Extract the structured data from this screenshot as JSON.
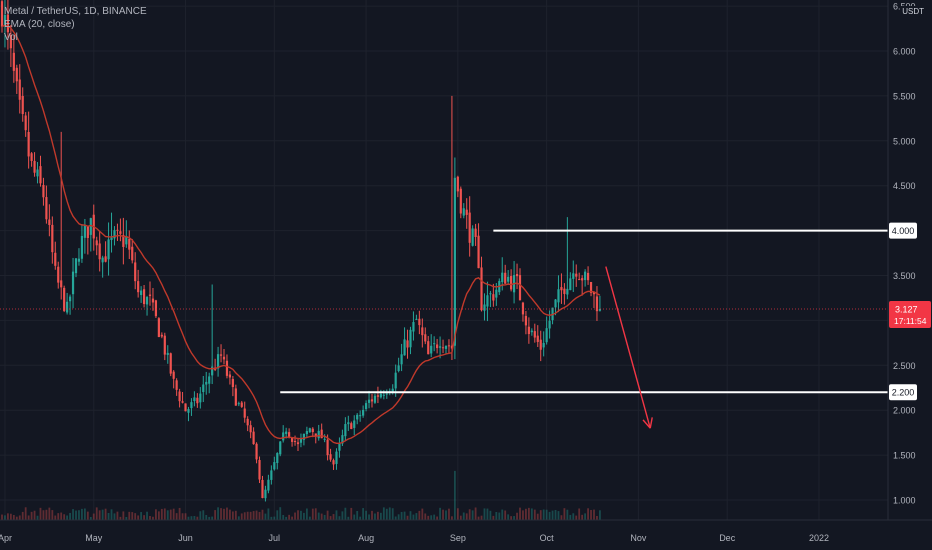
{
  "legend": {
    "symbol": "Metal / TetherUS, 1D, BINANCE",
    "indicator": "EMA (20, close)",
    "volume": "Vol"
  },
  "currency": "USDT",
  "colors": {
    "background": "#131722",
    "grid": "#1e222d",
    "up": "#26a69a",
    "down": "#ef5350",
    "ema": "#c0392b",
    "annotation_arrow": "#f23645",
    "level_line": "#ffffff",
    "axis_text": "#b2b5be",
    "price_tag": "#f23645"
  },
  "chart_data": {
    "type": "candlestick",
    "symbol": "Metal / TetherUS",
    "timeframe": "1D",
    "exchange": "BINANCE",
    "y_axis": {
      "ticks": [
        "1.000",
        "1.500",
        "2.000",
        "2.500",
        "3.000",
        "3.500",
        "4.000",
        "4.500",
        "5.000",
        "5.500",
        "6.000",
        "6.500"
      ],
      "ylim": [
        0.7,
        6.6
      ]
    },
    "x_axis": {
      "ticks": [
        "Apr",
        "May",
        "Jun",
        "Jul",
        "Aug",
        "Sep",
        "Oct",
        "Nov",
        "Dec",
        "2022"
      ]
    },
    "horizontal_levels": [
      {
        "label": "4.000",
        "value": 4.0
      },
      {
        "label": "2.200",
        "value": 2.2
      }
    ],
    "last_price": {
      "value": 3.127,
      "label": "3.127",
      "countdown": "17:11:54"
    },
    "anchors": [
      [
        "2021-03-31",
        6.5
      ],
      [
        "2021-04-03",
        5.9
      ],
      [
        "2021-04-06",
        5.3
      ],
      [
        "2021-04-10",
        4.7
      ],
      [
        "2021-04-14",
        4.4
      ],
      [
        "2021-04-18",
        3.5
      ],
      [
        "2021-04-22",
        3.1
      ],
      [
        "2021-04-26",
        3.8
      ],
      [
        "2021-04-30",
        4.1
      ],
      [
        "2021-05-04",
        3.7
      ],
      [
        "2021-05-08",
        3.9
      ],
      [
        "2021-05-12",
        3.9
      ],
      [
        "2021-05-16",
        3.3
      ],
      [
        "2021-05-20",
        3.2
      ],
      [
        "2021-05-24",
        2.8
      ],
      [
        "2021-05-28",
        2.3
      ],
      [
        "2021-06-01",
        2.0
      ],
      [
        "2021-06-05",
        2.1
      ],
      [
        "2021-06-09",
        2.4
      ],
      [
        "2021-06-13",
        2.6
      ],
      [
        "2021-06-17",
        2.2
      ],
      [
        "2021-06-21",
        1.9
      ],
      [
        "2021-06-25",
        1.5
      ],
      [
        "2021-06-27",
        1.0
      ],
      [
        "2021-07-01",
        1.4
      ],
      [
        "2021-07-05",
        1.8
      ],
      [
        "2021-07-09",
        1.6
      ],
      [
        "2021-07-13",
        1.8
      ],
      [
        "2021-07-17",
        1.7
      ],
      [
        "2021-07-21",
        1.4
      ],
      [
        "2021-07-25",
        1.8
      ],
      [
        "2021-07-29",
        1.9
      ],
      [
        "2021-08-02",
        2.1
      ],
      [
        "2021-08-06",
        2.2
      ],
      [
        "2021-08-10",
        2.3
      ],
      [
        "2021-08-14",
        2.7
      ],
      [
        "2021-08-18",
        3.0
      ],
      [
        "2021-08-22",
        2.6
      ],
      [
        "2021-08-26",
        2.8
      ],
      [
        "2021-08-30",
        2.7
      ],
      [
        "2021-08-31",
        4.6
      ],
      [
        "2021-09-03",
        4.2
      ],
      [
        "2021-09-07",
        3.8
      ],
      [
        "2021-09-09",
        3.2
      ],
      [
        "2021-09-13",
        3.3
      ],
      [
        "2021-09-17",
        3.5
      ],
      [
        "2021-09-21",
        3.4
      ],
      [
        "2021-09-25",
        2.9
      ],
      [
        "2021-09-29",
        2.7
      ],
      [
        "2021-10-03",
        3.1
      ],
      [
        "2021-10-07",
        3.4
      ],
      [
        "2021-10-11",
        3.6
      ],
      [
        "2021-10-15",
        3.4
      ],
      [
        "2021-10-19",
        3.127
      ]
    ],
    "annotation": {
      "type": "arrow",
      "from": [
        "2021-10-21",
        3.6
      ],
      "to": [
        "2021-11-05",
        1.8
      ]
    }
  }
}
